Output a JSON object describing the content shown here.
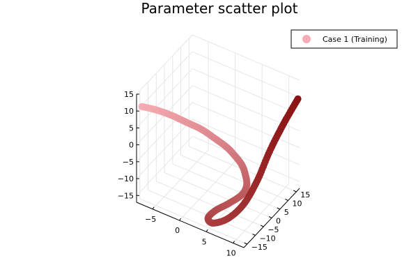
{
  "chart_data": {
    "type": "scatter",
    "title": "Parameter scatter plot",
    "xlabel": "",
    "ylabel": "",
    "zlabel": "",
    "xlim": [
      -8,
      12
    ],
    "ylim": [
      -17,
      17
    ],
    "zlim": [
      -17,
      15
    ],
    "x_ticks": [
      "−5",
      "0",
      "5",
      "10"
    ],
    "y_ticks": [
      "−15",
      "−10",
      "−5",
      "0",
      "5",
      "10",
      "15"
    ],
    "z_ticks": [
      "−15",
      "−10",
      "−5",
      "0",
      "5",
      "10",
      "15"
    ],
    "grid": true,
    "legend_position": "top-right",
    "color_start": "#f7adb5",
    "color_end": "#8b1212",
    "series": [
      {
        "name": "Case 1 (Training)",
        "x": [
          -7,
          -5,
          -3,
          -1,
          1,
          3,
          4.5,
          5.5,
          6.5,
          7,
          7.5,
          7,
          5.5,
          4,
          3.5,
          5,
          7.5,
          9.5,
          10.5,
          11,
          11.5,
          12
        ],
        "y": [
          -17,
          -14.5,
          -12,
          -9.5,
          -7,
          -5,
          -3,
          -1.5,
          -0.5,
          0,
          -0.5,
          -2,
          -5,
          -8,
          -11,
          -13,
          -12,
          -9,
          -4,
          2,
          9,
          16
        ],
        "z": [
          12,
          11,
          9.5,
          7.5,
          5.5,
          3,
          0.5,
          -2,
          -4.5,
          -7,
          -10,
          -12.5,
          -14.5,
          -16,
          -17,
          -16.5,
          -14,
          -10,
          -5,
          1,
          6,
          10
        ]
      }
    ]
  }
}
